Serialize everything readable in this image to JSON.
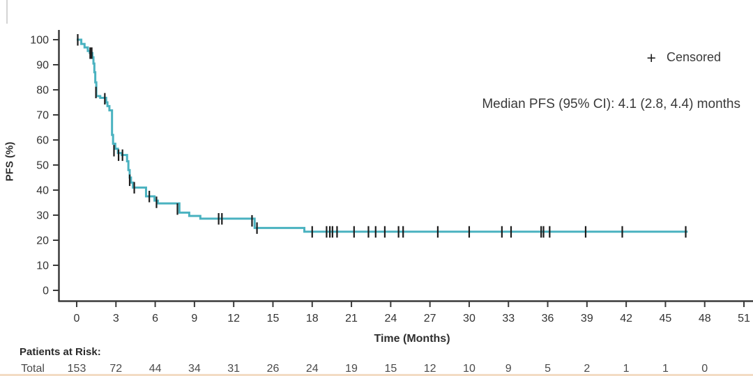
{
  "page": {
    "background": "#ffffff"
  },
  "legend": {
    "symbol": "+",
    "label": "Censored"
  },
  "annotation": "Median PFS (95% CI): 4.1 (2.8, 4.4) months",
  "colors": {
    "curve": "#4AB2C0",
    "censor": "#1d1d1d",
    "axis": "#3a3a3a",
    "tick_text": "#333333",
    "risk_text": "#4a4a4a",
    "bottom_rule": "#f3dcc4"
  },
  "chart_data": {
    "type": "line",
    "subtype": "kaplan-meier-step",
    "title": "",
    "xlabel": "Time (Months)",
    "ylabel": "PFS (%)",
    "xlim": [
      0,
      51
    ],
    "ylim": [
      0,
      100
    ],
    "x_ticks": [
      0,
      3,
      6,
      9,
      12,
      15,
      18,
      21,
      24,
      27,
      30,
      33,
      36,
      39,
      42,
      45,
      48,
      51
    ],
    "y_ticks": [
      0,
      10,
      20,
      30,
      40,
      50,
      60,
      70,
      80,
      90,
      100
    ],
    "grid": false,
    "legend": {
      "position": "top-right",
      "entries": [
        "Censored"
      ]
    },
    "annotations": [
      "Median PFS (95% CI): 4.1 (2.8, 4.4) months"
    ],
    "series": [
      {
        "name": "Total",
        "median_pfs_months": 4.1,
        "ci_95": [
          2.8,
          4.4
        ],
        "steps": [
          [
            0,
            100
          ],
          [
            0.35,
            98.3
          ],
          [
            0.6,
            96.9
          ],
          [
            0.85,
            95.5
          ],
          [
            1.0,
            94.7
          ],
          [
            1.2,
            93
          ],
          [
            1.28,
            90.5
          ],
          [
            1.35,
            87
          ],
          [
            1.42,
            83
          ],
          [
            1.5,
            77.5
          ],
          [
            1.8,
            76.8
          ],
          [
            2.25,
            75
          ],
          [
            2.35,
            73.5
          ],
          [
            2.5,
            71.8
          ],
          [
            2.7,
            62
          ],
          [
            2.78,
            58.5
          ],
          [
            2.95,
            56.5
          ],
          [
            3.15,
            54.8
          ],
          [
            3.45,
            54
          ],
          [
            3.85,
            51.5
          ],
          [
            3.95,
            48
          ],
          [
            4.05,
            45
          ],
          [
            4.15,
            43
          ],
          [
            4.3,
            41
          ],
          [
            5.3,
            37.5
          ],
          [
            5.95,
            35.8
          ],
          [
            6.2,
            34.7
          ],
          [
            7.85,
            31
          ],
          [
            8.6,
            29.7
          ],
          [
            9.45,
            28.6
          ],
          [
            13.6,
            24.9
          ],
          [
            17.4,
            23.4
          ]
        ],
        "end_time": 46.7,
        "censor_marks": [
          [
            0.08,
            100
          ],
          [
            1.03,
            94.7
          ],
          [
            1.15,
            94.7
          ],
          [
            1.47,
            79
          ],
          [
            2.15,
            76.5
          ],
          [
            2.85,
            55.8
          ],
          [
            3.2,
            54
          ],
          [
            3.5,
            54
          ],
          [
            4.05,
            44
          ],
          [
            4.4,
            41
          ],
          [
            5.55,
            37.5
          ],
          [
            6.1,
            35.2
          ],
          [
            7.7,
            32.5
          ],
          [
            10.85,
            28.6
          ],
          [
            11.1,
            28.6
          ],
          [
            13.4,
            27.8
          ],
          [
            13.78,
            24.9
          ],
          [
            18.0,
            23.4
          ],
          [
            19.1,
            23.4
          ],
          [
            19.35,
            23.4
          ],
          [
            19.55,
            23.4
          ],
          [
            19.9,
            23.4
          ],
          [
            21.2,
            23.4
          ],
          [
            22.3,
            23.4
          ],
          [
            22.85,
            23.4
          ],
          [
            23.55,
            23.4
          ],
          [
            24.6,
            23.4
          ],
          [
            24.95,
            23.4
          ],
          [
            27.6,
            23.4
          ],
          [
            30.0,
            23.4
          ],
          [
            32.5,
            23.4
          ],
          [
            33.2,
            23.4
          ],
          [
            35.5,
            23.4
          ],
          [
            35.68,
            23.4
          ],
          [
            36.15,
            23.4
          ],
          [
            38.9,
            23.4
          ],
          [
            41.7,
            23.4
          ],
          [
            46.55,
            23.4
          ]
        ]
      }
    ]
  },
  "risk_table": {
    "title": "Patients at Risk:",
    "row_label": "Total",
    "times": [
      0,
      3,
      6,
      9,
      12,
      15,
      18,
      21,
      24,
      27,
      30,
      33,
      36,
      39,
      42,
      45,
      48
    ],
    "values": [
      153,
      72,
      44,
      34,
      31,
      26,
      24,
      19,
      15,
      12,
      10,
      9,
      5,
      2,
      1,
      1,
      0
    ]
  }
}
